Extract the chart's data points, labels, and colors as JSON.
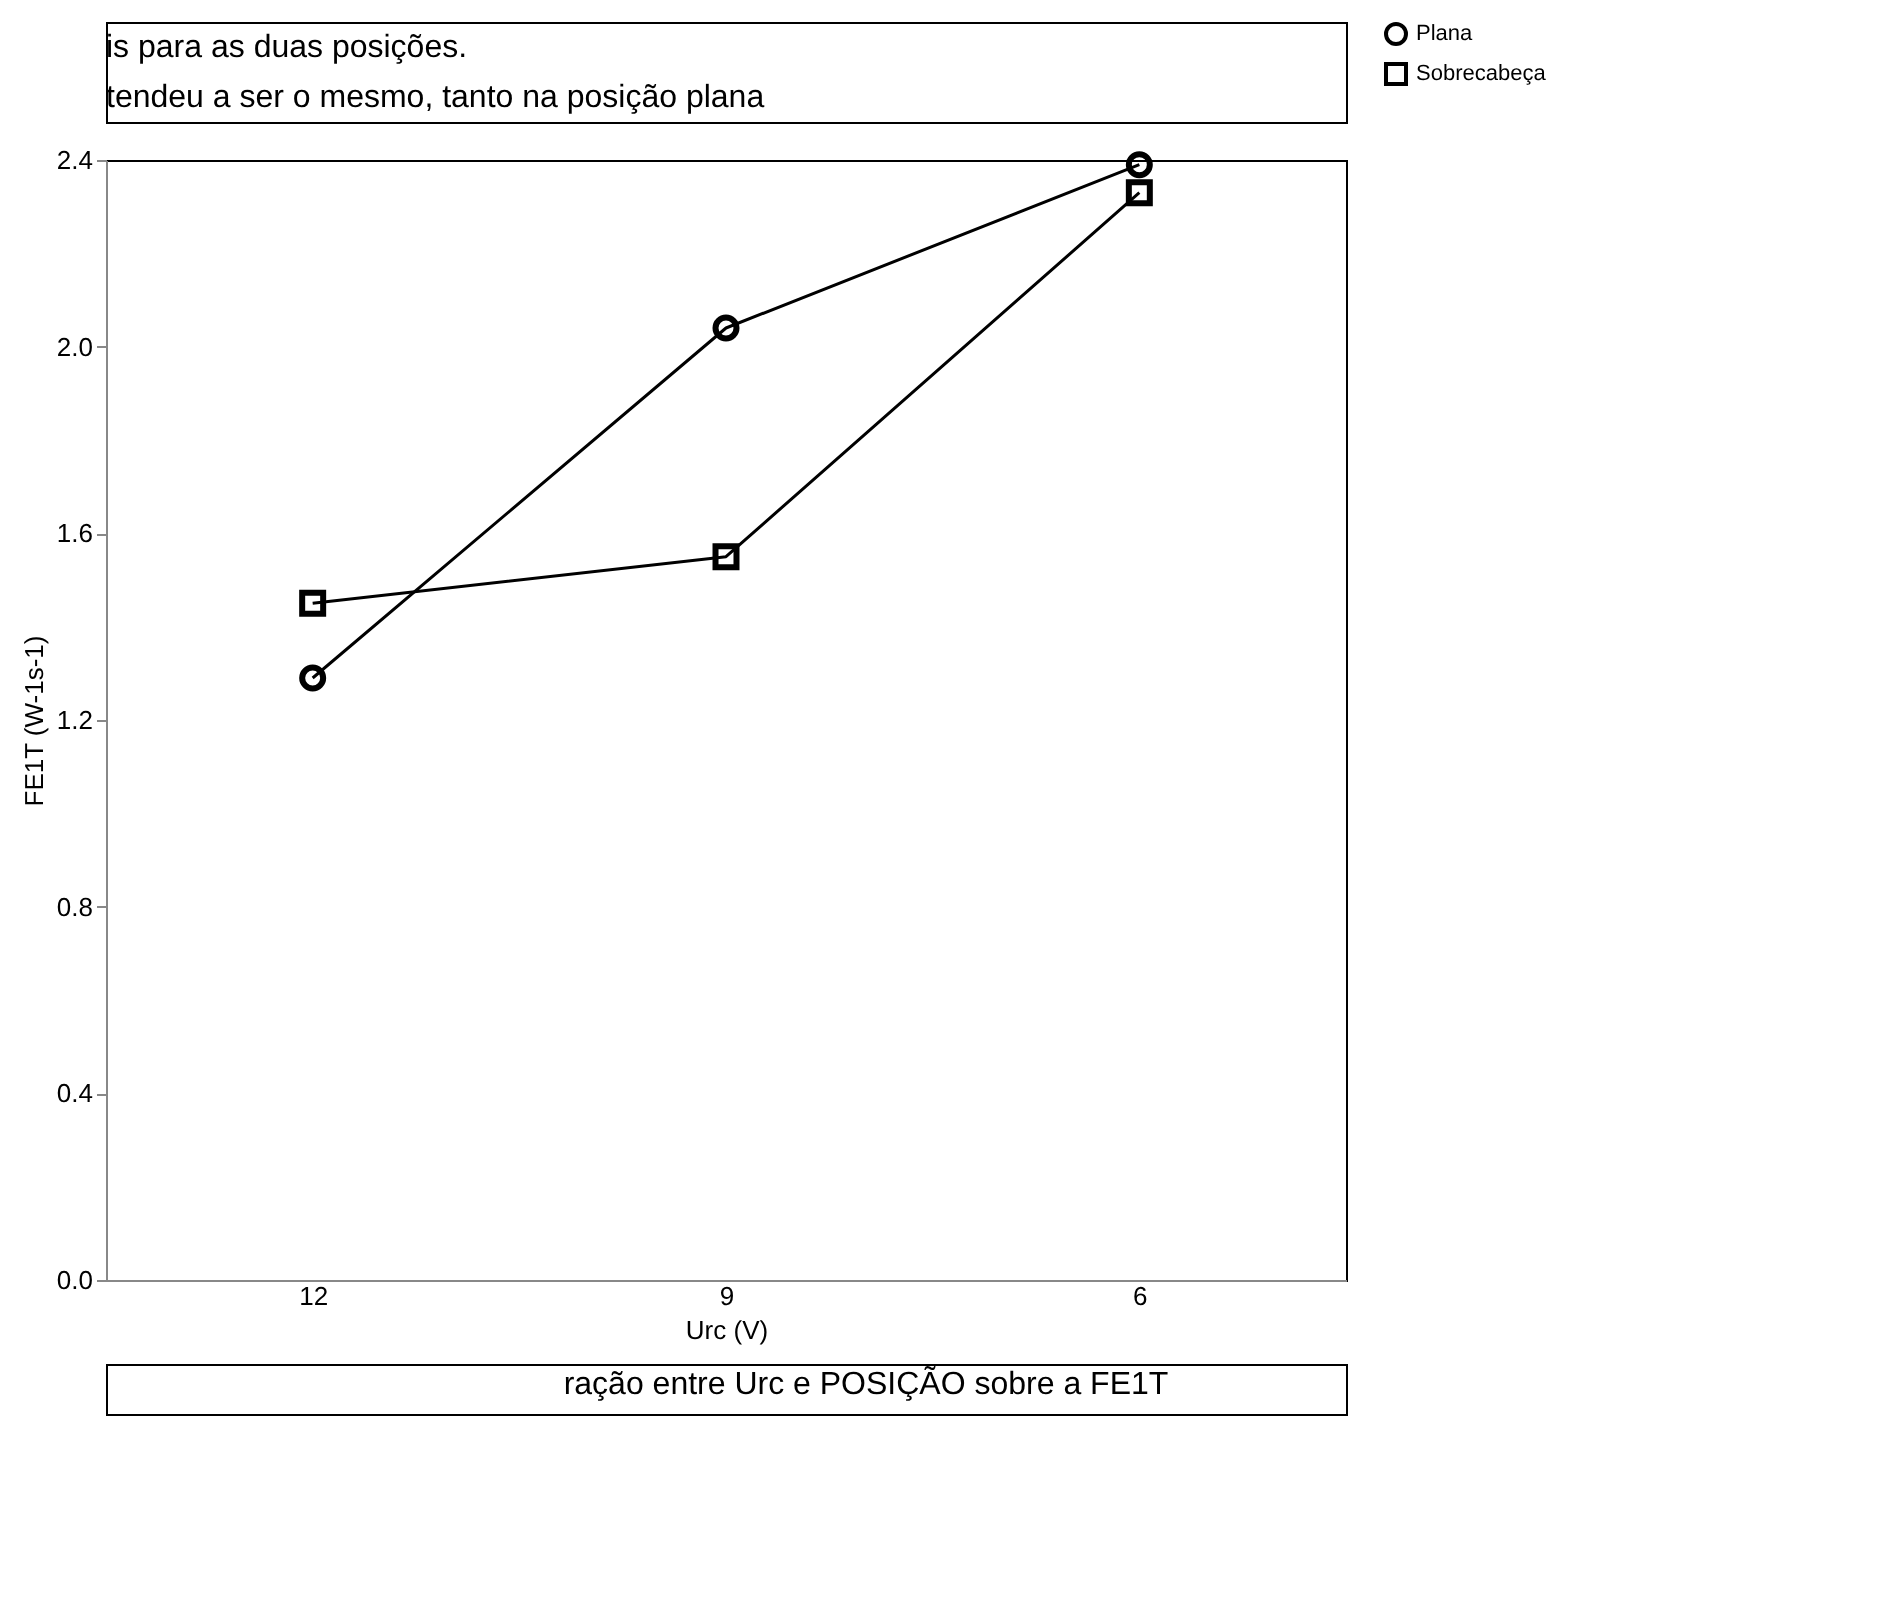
{
  "chart_data": {
    "type": "line",
    "xlabel": "Urc (V)",
    "ylabel": "FE1T (W-1s-1)",
    "categories": [
      "12",
      "9",
      "6"
    ],
    "series": [
      {
        "name": "Plana",
        "color": "#000000",
        "marker": "circle",
        "values": [
          1.29,
          2.04,
          2.39
        ]
      },
      {
        "name": "Sobrecabeça",
        "color": "#000000",
        "marker": "square",
        "values": [
          1.45,
          1.55,
          2.33
        ]
      }
    ],
    "ylim": [
      0,
      2.4
    ],
    "yticks": [
      "0.0",
      0.4,
      0.8,
      1.2,
      1.6,
      "2.0",
      2.4
    ],
    "grid": false,
    "legend": "right",
    "line_style": "solid",
    "annotations": [
      "is para as duas posições.",
      "tendeu a ser o mesmo, tanto na posição plana",
      "ração entre Urc e POSIÇÃO sobre a FE1T"
    ]
  }
}
